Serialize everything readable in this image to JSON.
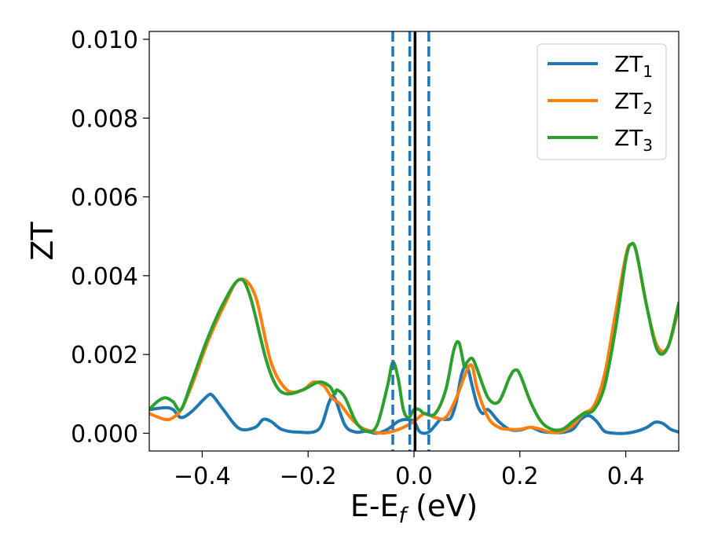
{
  "chart_data": {
    "type": "line",
    "xlabel": "E-E",
    "xlabel_sub": "f",
    "xlabel_unit": " (eV)",
    "ylabel": "ZT",
    "xlim": [
      -0.5,
      0.5
    ],
    "ylim": [
      -0.00045,
      0.0102
    ],
    "xticks": [
      -0.4,
      -0.2,
      0.0,
      0.2,
      0.4
    ],
    "xtick_labels": [
      "−0.4",
      "−0.2",
      "0.0",
      "0.2",
      "0.4"
    ],
    "yticks": [
      0.0,
      0.002,
      0.004,
      0.006,
      0.008,
      0.01
    ],
    "ytick_labels": [
      "0.000",
      "0.002",
      "0.004",
      "0.006",
      "0.008",
      "0.010"
    ],
    "legend": {
      "placement": "upper right",
      "entries": [
        {
          "label": "ZT",
          "sub": "1",
          "color": "#1f77b4"
        },
        {
          "label": "ZT",
          "sub": "2",
          "color": "#ff7f0e"
        },
        {
          "label": "ZT",
          "sub": "3",
          "color": "#2ca02c"
        }
      ]
    },
    "vertical_lines": [
      {
        "x": -0.04,
        "style": "dashed",
        "color": "#1f77b4"
      },
      {
        "x": -0.008,
        "style": "dashed",
        "color": "#1f77b4"
      },
      {
        "x": 0.028,
        "style": "dashed",
        "color": "#1f77b4"
      },
      {
        "x": 0.002,
        "style": "solid",
        "color": "#000000"
      }
    ],
    "series": [
      {
        "name": "ZT1",
        "color": "#1f77b4",
        "x": [
          -0.5,
          -0.47,
          -0.455,
          -0.44,
          -0.42,
          -0.39,
          -0.38,
          -0.36,
          -0.33,
          -0.3,
          -0.285,
          -0.27,
          -0.25,
          -0.22,
          -0.18,
          -0.16,
          -0.15,
          -0.13,
          -0.11,
          -0.09,
          -0.07,
          -0.05,
          -0.03,
          -0.015,
          0.0,
          0.01,
          0.02,
          0.03,
          0.04,
          0.05,
          0.06,
          0.07,
          0.08,
          0.09,
          0.1,
          0.11,
          0.12,
          0.13,
          0.14,
          0.16,
          0.18,
          0.2,
          0.22,
          0.24,
          0.26,
          0.28,
          0.3,
          0.315,
          0.33,
          0.345,
          0.36,
          0.38,
          0.4,
          0.42,
          0.44,
          0.455,
          0.47,
          0.485,
          0.5
        ],
        "values": [
          0.0006,
          0.00065,
          0.0006,
          0.0004,
          0.00055,
          0.00095,
          0.00095,
          0.0006,
          0.00012,
          0.00015,
          0.00035,
          0.0003,
          0.0001,
          3e-05,
          0.0001,
          0.0008,
          0.0009,
          0.0002,
          3e-05,
          5e-05,
          0.0,
          0.0001,
          0.0003,
          0.00035,
          0.0003,
          5e-05,
          0.0,
          5e-05,
          0.0002,
          0.00035,
          0.00035,
          0.0004,
          0.0008,
          0.0015,
          0.0017,
          0.0012,
          0.0007,
          0.0005,
          0.0006,
          0.0003,
          0.0001,
          8e-05,
          0.00015,
          5e-05,
          2e-05,
          2e-05,
          0.0001,
          0.00035,
          0.00045,
          0.0003,
          5e-05,
          0.0,
          0.0,
          5e-05,
          0.00015,
          0.00028,
          0.00025,
          0.0001,
          3e-05
        ]
      },
      {
        "name": "ZT2",
        "color": "#ff7f0e",
        "x": [
          -0.5,
          -0.47,
          -0.455,
          -0.44,
          -0.42,
          -0.39,
          -0.36,
          -0.33,
          -0.3,
          -0.27,
          -0.24,
          -0.21,
          -0.19,
          -0.17,
          -0.155,
          -0.14,
          -0.12,
          -0.1,
          -0.08,
          -0.06,
          -0.04,
          -0.02,
          0.0,
          0.02,
          0.04,
          0.06,
          0.08,
          0.1,
          0.11,
          0.12,
          0.14,
          0.16,
          0.18,
          0.2,
          0.22,
          0.24,
          0.26,
          0.28,
          0.3,
          0.32,
          0.34,
          0.36,
          0.38,
          0.4,
          0.41,
          0.42,
          0.44,
          0.46,
          0.48,
          0.5
        ],
        "values": [
          0.0005,
          0.00035,
          0.0004,
          0.0006,
          0.0012,
          0.0023,
          0.0032,
          0.0039,
          0.0035,
          0.0018,
          0.0011,
          0.0011,
          0.0013,
          0.0012,
          0.0009,
          0.00075,
          0.0004,
          0.00015,
          5e-05,
          0.0,
          5e-05,
          0.00015,
          0.0003,
          0.0005,
          0.0004,
          0.0004,
          0.0009,
          0.0016,
          0.0017,
          0.0011,
          0.0004,
          0.00015,
          0.0001,
          0.0001,
          0.00015,
          0.0001,
          2e-05,
          5e-05,
          0.0002,
          0.0005,
          0.0007,
          0.0015,
          0.003,
          0.0045,
          0.0048,
          0.0046,
          0.0032,
          0.0022,
          0.0022,
          0.0032
        ]
      },
      {
        "name": "ZT3",
        "color": "#2ca02c",
        "x": [
          -0.5,
          -0.485,
          -0.47,
          -0.455,
          -0.44,
          -0.42,
          -0.39,
          -0.36,
          -0.33,
          -0.31,
          -0.28,
          -0.26,
          -0.24,
          -0.21,
          -0.18,
          -0.16,
          -0.15,
          -0.145,
          -0.13,
          -0.11,
          -0.09,
          -0.07,
          -0.05,
          -0.04,
          -0.03,
          -0.02,
          -0.01,
          0.0,
          0.01,
          0.02,
          0.04,
          0.06,
          0.075,
          0.085,
          0.095,
          0.1,
          0.11,
          0.12,
          0.14,
          0.16,
          0.18,
          0.19,
          0.2,
          0.22,
          0.24,
          0.26,
          0.28,
          0.3,
          0.32,
          0.34,
          0.36,
          0.38,
          0.4,
          0.41,
          0.42,
          0.44,
          0.46,
          0.48,
          0.5
        ],
        "values": [
          0.0006,
          0.0008,
          0.0009,
          0.0008,
          0.0006,
          0.0013,
          0.0024,
          0.0033,
          0.0039,
          0.0035,
          0.0019,
          0.0012,
          0.001,
          0.0011,
          0.0013,
          0.0012,
          0.001,
          0.0011,
          0.0009,
          0.0003,
          5e-05,
          0.0002,
          0.0012,
          0.0018,
          0.0014,
          0.0006,
          0.0004,
          0.0006,
          0.0006,
          0.0005,
          0.0005,
          0.0011,
          0.0021,
          0.0023,
          0.0017,
          0.0018,
          0.0019,
          0.0016,
          0.0009,
          0.0008,
          0.0014,
          0.0016,
          0.0015,
          0.0008,
          0.0003,
          0.0001,
          0.0001,
          0.0003,
          0.0005,
          0.0006,
          0.0012,
          0.0026,
          0.0044,
          0.0048,
          0.0046,
          0.0032,
          0.0021,
          0.0022,
          0.0033
        ]
      }
    ]
  }
}
